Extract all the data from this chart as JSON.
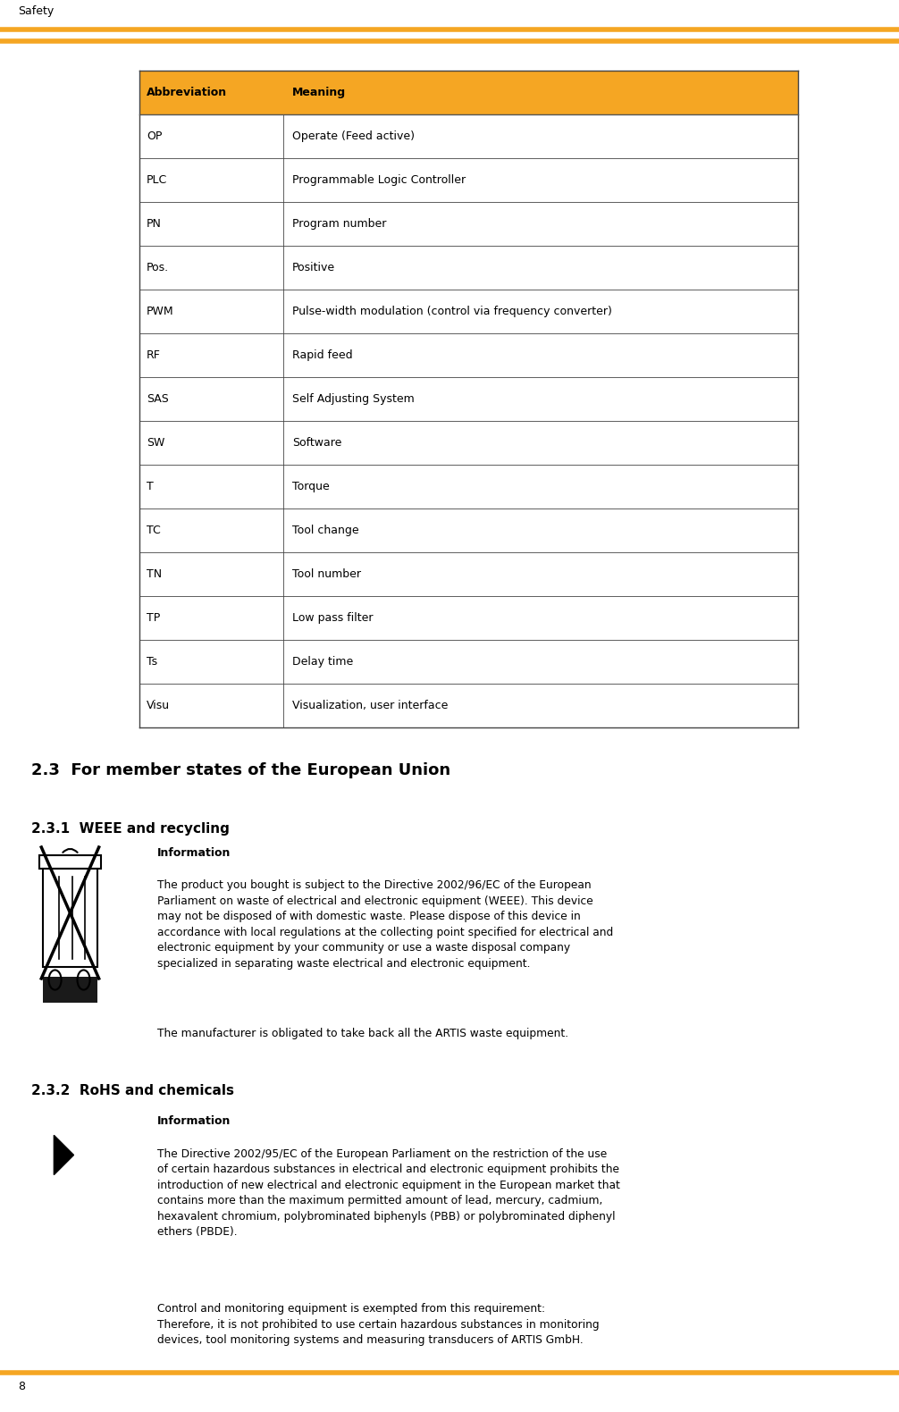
{
  "page_label": "Safety",
  "page_number": "8",
  "orange_color": "#F5A623",
  "table_abbreviations": [
    "OP",
    "PLC",
    "PN",
    "Pos.",
    "PWM",
    "RF",
    "SAS",
    "SW",
    "T",
    "TC",
    "TN",
    "TP",
    "Ts",
    "Visu"
  ],
  "table_meanings": [
    "Operate (Feed active)",
    "Programmable Logic Controller",
    "Program number",
    "Positive",
    "Pulse-width modulation (control via frequency converter)",
    "Rapid feed",
    "Self Adjusting System",
    "Software",
    "Torque",
    "Tool change",
    "Tool number",
    "Low pass filter",
    "Delay time",
    "Visualization, user interface"
  ],
  "section_title": "2.3  For member states of the European Union",
  "subsection1": "2.3.1  WEEE and recycling",
  "subsection2": "2.3.2  RoHS and chemicals",
  "info_label": "Information",
  "weee_para1": "The product you bought is subject to the Directive 2002/96/EC of the European\nParliament on waste of electrical and electronic equipment (WEEE). This device\nmay not be disposed of with domestic waste. Please dispose of this device in\naccordance with local regulations at the collecting point specified for electrical and\nelectronic equipment by your community or use a waste disposal company\nspecialized in separating waste electrical and electronic equipment.",
  "weee_para2": "The manufacturer is obligated to take back all the ARTIS waste equipment.",
  "rohs_para1": "The Directive 2002/95/EC of the European Parliament on the restriction of the use\nof certain hazardous substances in electrical and electronic equipment prohibits the\nintroduction of new electrical and electronic equipment in the European market that\ncontains more than the maximum permitted amount of lead, mercury, cadmium,\nhexavalent chromium, polybrominated biphenyls (PBB) or polybrominated diphenyl\nethers (PBDE).",
  "rohs_para2": "Control and monitoring equipment is exempted from this requirement:\nTherefore, it is not prohibited to use certain hazardous substances in monitoring\ndevices, tool monitoring systems and measuring transducers of ARTIS GmbH."
}
